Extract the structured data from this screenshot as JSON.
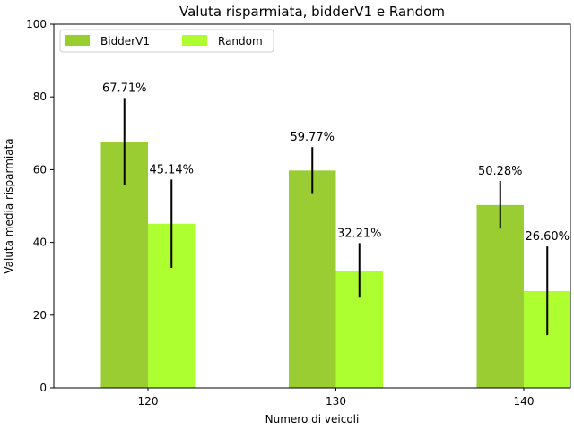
{
  "chart_data": {
    "type": "bar",
    "title": "Valuta risparmiata, bidderV1 e Random",
    "xlabel": "Numero di veicoli",
    "ylabel": "Valuta media risparmiata",
    "categories": [
      "120",
      "130",
      "140"
    ],
    "ylim": [
      0,
      100
    ],
    "yticks": [
      0,
      20,
      40,
      60,
      80,
      100
    ],
    "legend_position": "top-left",
    "grid": false,
    "series": [
      {
        "name": "BidderV1",
        "color": "#9acd32",
        "values": [
          67.71,
          59.77,
          50.28
        ],
        "labels": [
          "67.71%",
          "59.77%",
          "50.28%"
        ],
        "error": [
          [
            55.8,
            79.7
          ],
          [
            53.3,
            66.2
          ],
          [
            43.8,
            56.9
          ]
        ]
      },
      {
        "name": "Random",
        "color": "#adff2f",
        "values": [
          45.14,
          32.21,
          26.6
        ],
        "labels": [
          "45.14%",
          "32.21%",
          "26.60%"
        ],
        "error": [
          [
            33.0,
            57.3
          ],
          [
            24.8,
            39.8
          ],
          [
            14.5,
            38.9
          ]
        ]
      }
    ]
  }
}
